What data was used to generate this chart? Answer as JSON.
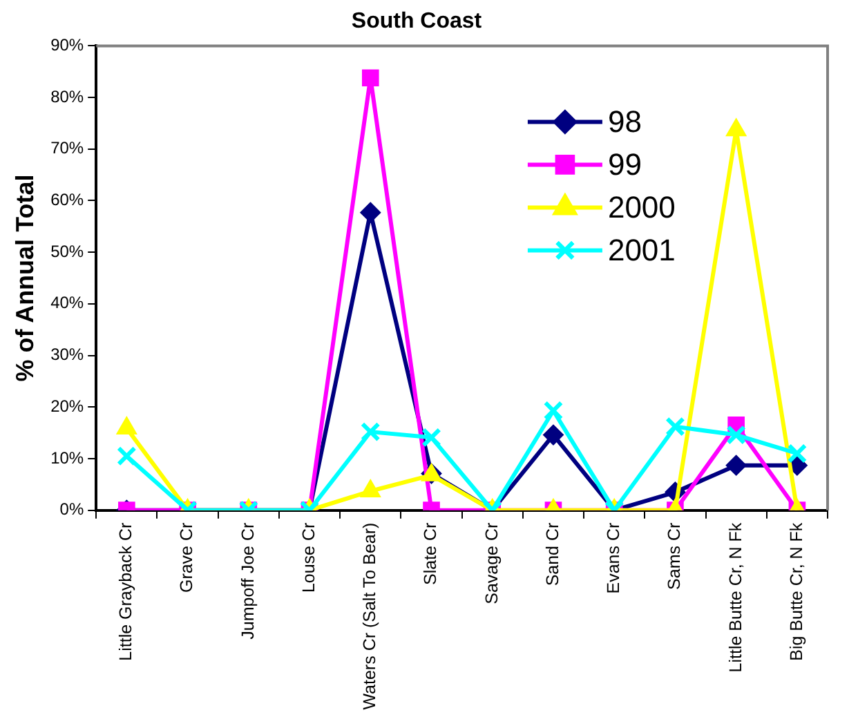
{
  "chart_data": {
    "type": "line",
    "title": "South Coast",
    "ylabel": "% of Annual Total",
    "categories": [
      "Little Grayback Cr",
      "Grave Cr",
      "Jumpoff Joe Cr",
      "Louse Cr",
      "Waters Cr (Salt To Bear)",
      "Slate Cr",
      "Savage Cr",
      "Sand Cr",
      "Evans Cr",
      "Sams Cr",
      "Little Butte Cr, N Fk",
      "Big Butte Cr, N Fk"
    ],
    "series": [
      {
        "name": "98",
        "color": "#000080",
        "marker": "diamond",
        "values": [
          0,
          0,
          0,
          0,
          57.7,
          7.1,
          0,
          14.6,
          0,
          3.5,
          8.7,
          8.7
        ]
      },
      {
        "name": "99",
        "color": "#ff00ff",
        "marker": "square",
        "values": [
          0,
          0,
          0,
          0,
          83.8,
          0,
          0,
          0,
          0,
          0,
          16.5,
          0
        ]
      },
      {
        "name": "2000",
        "color": "#ffff00",
        "marker": "triangle",
        "values": [
          15.9,
          0,
          0,
          0,
          3.7,
          6.8,
          0,
          0,
          0,
          0,
          73.7,
          0
        ]
      },
      {
        "name": "2001",
        "color": "#00ffff",
        "marker": "cross",
        "values": [
          10.5,
          0,
          0,
          0,
          15.2,
          14.1,
          0,
          19.3,
          0,
          16.2,
          14.6,
          11
        ]
      }
    ],
    "ylim": [
      0,
      90
    ],
    "yticks": [
      {
        "value": 0,
        "label": "0%"
      },
      {
        "value": 10,
        "label": "10%"
      },
      {
        "value": 20,
        "label": "20%"
      },
      {
        "value": 30,
        "label": "30%"
      },
      {
        "value": 40,
        "label": "40%"
      },
      {
        "value": 50,
        "label": "50%"
      },
      {
        "value": 60,
        "label": "60%"
      },
      {
        "value": 70,
        "label": "70%"
      },
      {
        "value": 80,
        "label": "80%"
      },
      {
        "value": 90,
        "label": "90%"
      }
    ],
    "grid": false,
    "legend": "top right",
    "line_style": "solid"
  }
}
